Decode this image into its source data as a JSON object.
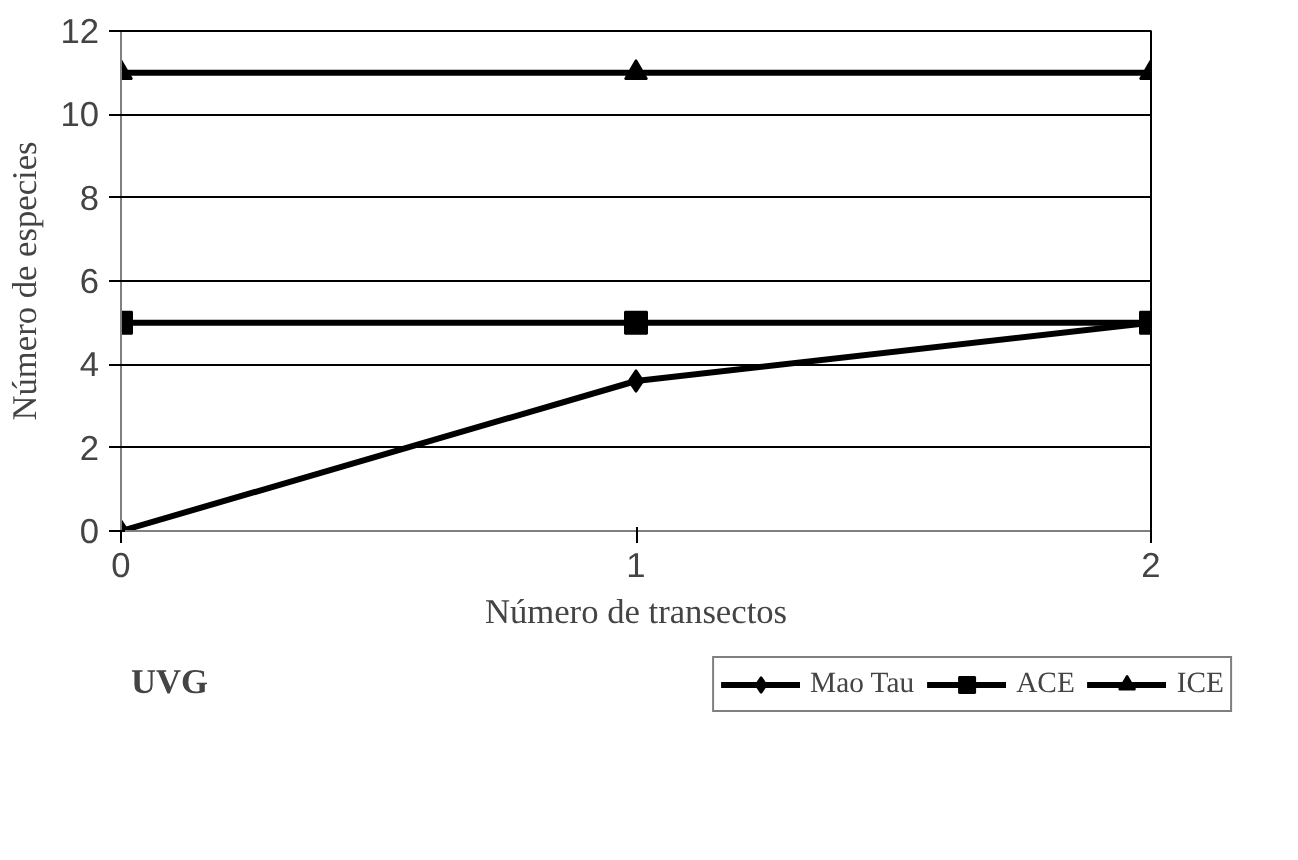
{
  "chart_data": {
    "type": "line",
    "xlabel": "Número de transectos",
    "ylabel": "Número de especies",
    "x": [
      0,
      1,
      2
    ],
    "xlim": [
      0,
      2
    ],
    "xticks": [
      0,
      1,
      2
    ],
    "ylim": [
      0,
      12
    ],
    "yticks": [
      0,
      2,
      4,
      6,
      8,
      10,
      12
    ],
    "grid": "y",
    "legend": "bottom right",
    "annotations": [
      "UVG"
    ],
    "series": [
      {
        "name": "Mao Tau",
        "color": "#000000",
        "marker": "diamond",
        "values": [
          0,
          3.6,
          5
        ]
      },
      {
        "name": "ACE",
        "color": "#000000",
        "marker": "square",
        "values": [
          5,
          5,
          5
        ]
      },
      {
        "name": "ICE",
        "color": "#000000",
        "marker": "triangle",
        "values": [
          11,
          11,
          11
        ]
      }
    ]
  }
}
